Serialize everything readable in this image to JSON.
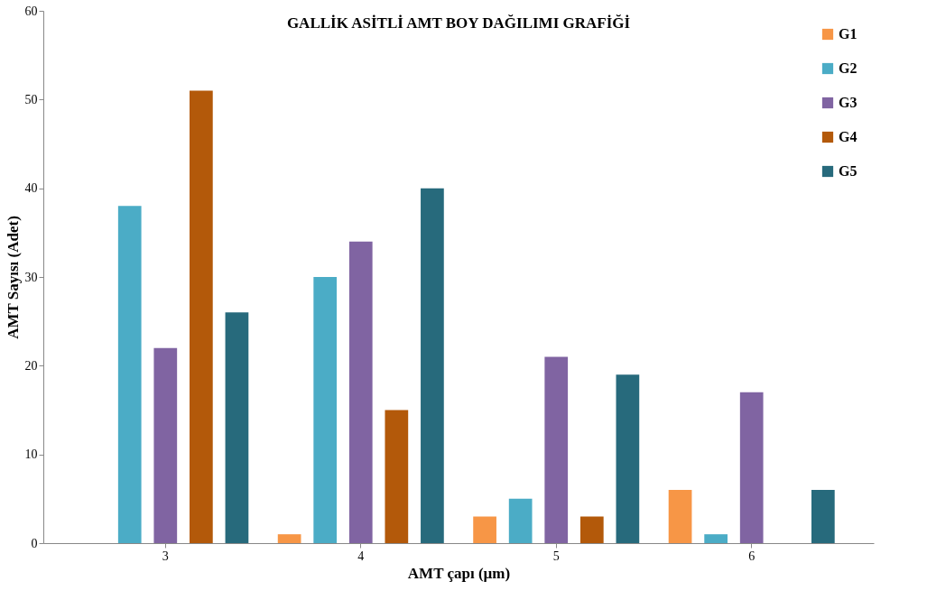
{
  "chart_data": {
    "type": "bar",
    "title": "GALLİK ASİTLİ AMT BOY DAĞILIMI  GRAFİĞİ",
    "xlabel": "AMT çapı (µm)",
    "ylabel": "AMT Sayısı (Adet)",
    "categories": [
      "3",
      "4",
      "5",
      "6"
    ],
    "series": [
      {
        "name": "G1",
        "color": "#f79646",
        "values": [
          0,
          1,
          3,
          6
        ]
      },
      {
        "name": "G2",
        "color": "#4bacc6",
        "values": [
          38,
          30,
          5,
          1
        ]
      },
      {
        "name": "G3",
        "color": "#8064a2",
        "values": [
          22,
          34,
          21,
          17
        ]
      },
      {
        "name": "G4",
        "color": "#b3590a",
        "values": [
          51,
          15,
          3,
          0
        ]
      },
      {
        "name": "G5",
        "color": "#276a7c",
        "values": [
          26,
          40,
          19,
          6
        ]
      }
    ],
    "ylim": [
      0,
      60
    ],
    "yticks": [
      0,
      10,
      20,
      30,
      40,
      50,
      60
    ],
    "grid": false,
    "legend": "top right"
  }
}
